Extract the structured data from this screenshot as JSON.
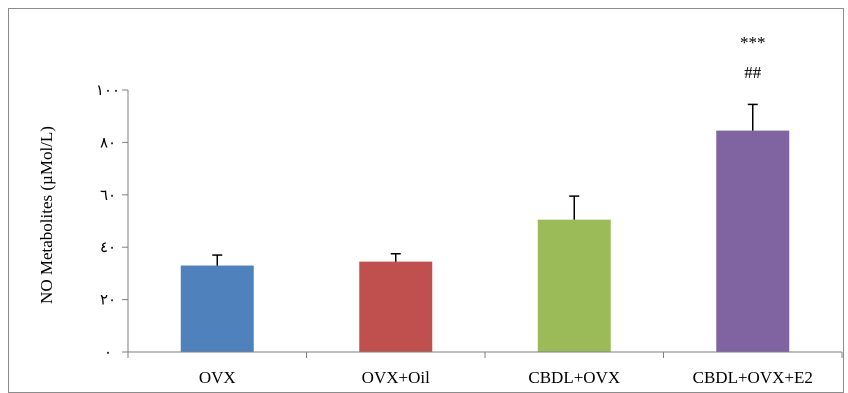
{
  "chart_data": {
    "type": "bar",
    "title": "",
    "xlabel": "",
    "ylabel": "NO Metabolites (µMol/L)",
    "ylim": [
      0,
      100
    ],
    "y_ticks": [
      0,
      20,
      40,
      60,
      80,
      100
    ],
    "y_tick_labels": [
      "٠",
      "٢٠",
      "٤٠",
      "٦٠",
      "٨٠",
      "١٠٠"
    ],
    "categories": [
      "OVX",
      "OVX+Oil",
      "CBDL+OVX",
      "CBDL+OVX+E2"
    ],
    "values": [
      33,
      34.5,
      50.5,
      84.5
    ],
    "errors": [
      4,
      3,
      9,
      10
    ],
    "colors": [
      "#4f81bd",
      "#c0504d",
      "#9bbb59",
      "#8064a2"
    ],
    "annotations": [
      {
        "category": "CBDL+OVX+E2",
        "lines": [
          "***",
          "##"
        ]
      }
    ],
    "grid": false,
    "legend": "none"
  }
}
